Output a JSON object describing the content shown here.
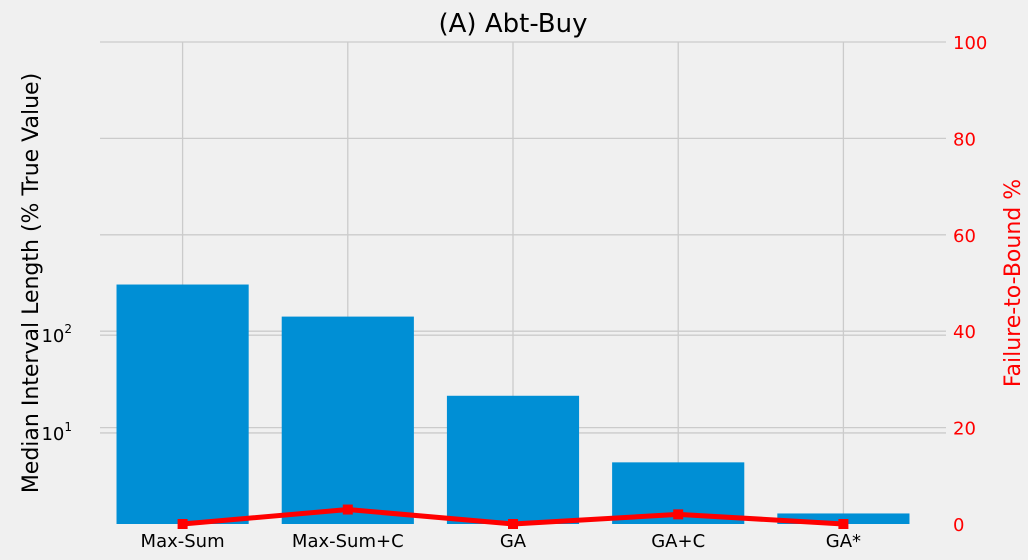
{
  "chart_data": {
    "type": "bar",
    "title": "(A) Abt-Buy",
    "categories": [
      "Max-Sum",
      "Max-Sum+C",
      "GA",
      "GA+C",
      "GA*"
    ],
    "bar_series": {
      "values": [
        330,
        155,
        24,
        5,
        1.5
      ],
      "color": "#008fd5",
      "axis": "left",
      "scale": "log",
      "ylim": [
        1.17,
        100000
      ],
      "ylabel": "Median Interval Length (% True Value)",
      "ticks": [
        {
          "value": 10,
          "base": "10",
          "exp": "1"
        },
        {
          "value": 100,
          "base": "10",
          "exp": "2"
        }
      ]
    },
    "line_series": {
      "values": [
        0,
        3,
        0,
        2,
        0
      ],
      "color": "#ff0000",
      "axis": "right",
      "scale": "linear",
      "ylim": [
        0,
        100
      ],
      "ylabel": "Failure-to-Bound %",
      "ticks": [
        "0",
        "20",
        "40",
        "60",
        "80",
        "100"
      ]
    },
    "grid": true,
    "legend": "none"
  }
}
